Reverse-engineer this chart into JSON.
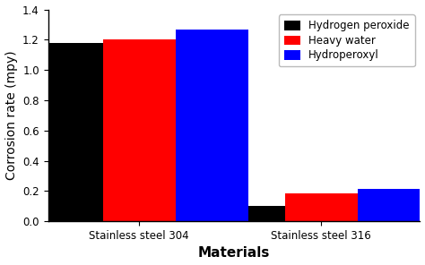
{
  "categories": [
    "Stainless steel 304",
    "Stainless steel 316"
  ],
  "series": [
    {
      "label": "Hydrogen peroxide",
      "color": "#000000",
      "values": [
        1.18,
        0.1
      ]
    },
    {
      "label": "Heavy water",
      "color": "#ff0000",
      "values": [
        1.2,
        0.185
      ]
    },
    {
      "label": "Hydroperoxyl",
      "color": "#0000ff",
      "values": [
        1.265,
        0.215
      ]
    }
  ],
  "ylabel": "Corrosion rate (mpy)",
  "xlabel": "Materials",
  "ylim": [
    0,
    1.4
  ],
  "yticks": [
    0.0,
    0.2,
    0.4,
    0.6,
    0.8,
    1.0,
    1.2,
    1.4
  ],
  "bar_width": 0.28,
  "legend_loc": "upper right",
  "background_color": "#ffffff",
  "tick_color": "#000000",
  "spine_color": "#000000",
  "label_fontsize": 10,
  "legend_fontsize": 8.5,
  "tick_fontsize": 8.5,
  "xlabel_fontsize": 11,
  "ylabel_fontsize": 10
}
